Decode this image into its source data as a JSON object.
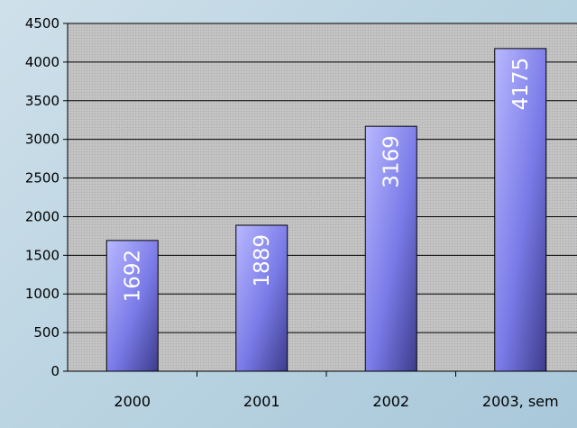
{
  "chart_data": {
    "type": "bar",
    "categories": [
      "2000",
      "2001",
      "2002",
      "2003, sem"
    ],
    "values": [
      1692,
      1889,
      3169,
      4175
    ],
    "data_labels": [
      "1692",
      "1889",
      "3169",
      "4175"
    ],
    "title": "",
    "xlabel": "",
    "ylabel": "",
    "ylim": [
      0,
      4500
    ],
    "yticks": [
      0,
      500,
      1000,
      1500,
      2000,
      2500,
      3000,
      3500,
      4000,
      4500
    ],
    "grid": true,
    "legend": "none",
    "colors": {
      "bar_light": "#b8b8ff",
      "bar_mid": "#7a7ae8",
      "bar_dark": "#3c3c8c",
      "plot_bg": "#c0c0c0",
      "grid": "#000000"
    }
  }
}
